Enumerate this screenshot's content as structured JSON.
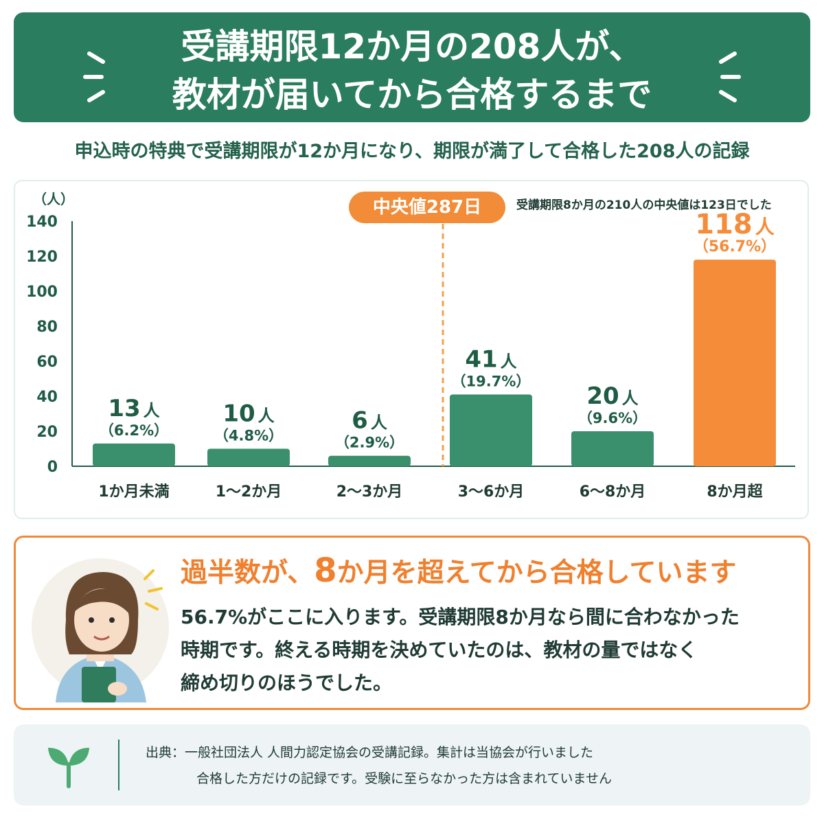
{
  "header": {
    "title_line1": "受講期限12か月の208人が、",
    "title_line2": "教材が届いてから合格するまで"
  },
  "subtitle": "申込時の特典で受講期限が12か月になり、期限が満了して合格した208人の記録",
  "median": {
    "badge": "中央値287日",
    "note": "受講期限8か月の210人の中央値は123日でした"
  },
  "chart_data": {
    "type": "bar",
    "y_unit": "（人）",
    "ylim": [
      0,
      140
    ],
    "yticks": [
      0,
      20,
      40,
      60,
      80,
      100,
      120,
      140
    ],
    "categories": [
      "1か月未満",
      "1〜2か月",
      "2〜3か月",
      "3〜6か月",
      "6〜8か月",
      "8か月超"
    ],
    "values": [
      13,
      10,
      6,
      41,
      20,
      118
    ],
    "value_labels": [
      "13",
      "10",
      "6",
      "41",
      "20",
      "118"
    ],
    "unit_label": "人",
    "percent_labels": [
      "（6.2%）",
      "（4.8%）",
      "（2.9%）",
      "（19.7%）",
      "（9.6%）",
      "（56.7%）"
    ],
    "highlight_index": 5,
    "colors": {
      "bar": "#3a8f6c",
      "highlight": "#f58c3a",
      "axis": "#1f5c46",
      "median_line": "#f5a04a"
    }
  },
  "callout": {
    "headline_pre": "過半数が、",
    "headline_num": "8",
    "headline_post": "か月を超えてから合格しています",
    "body_lines": [
      "56.7%がここに入ります。受講期限8か月なら間に合わなかった",
      "時期です。終える時期を決めていたのは、教材の量ではなく",
      "締め切りのほうでした。"
    ]
  },
  "source": {
    "line1": "出典：一般社団法人 人間力認定協会の受講記録。集計は当協会が行いました",
    "line2": "合格した方だけの記録です。受験に至らなかった方は含まれていません"
  },
  "icons": [
    "sparkle-icon",
    "person-illustration",
    "sprout-icon"
  ]
}
